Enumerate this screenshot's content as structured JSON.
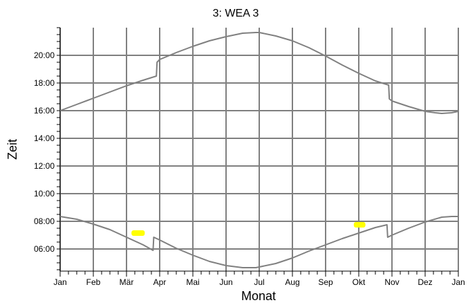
{
  "chart_data": {
    "type": "line",
    "title": "3: WEA 3",
    "xlabel": "Monat",
    "ylabel": "Zeit",
    "x_tick_labels": [
      "Jan",
      "Feb",
      "Mär",
      "Apr",
      "Mai",
      "Jun",
      "Jul",
      "Aug",
      "Sep",
      "Okt",
      "Nov",
      "Dez",
      "Jan"
    ],
    "xlim": [
      0,
      12
    ],
    "y_tick_labels": [
      "06:00",
      "08:00",
      "10:00",
      "12:00",
      "14:00",
      "16:00",
      "18:00",
      "20:00"
    ],
    "y_tick_values": [
      6,
      8,
      10,
      12,
      14,
      16,
      18,
      20
    ],
    "ylim": [
      4.4,
      22
    ],
    "grid": true,
    "line_color": "#808080",
    "highlight_color": "#ffff00",
    "series": [
      {
        "x": [
          0,
          0.5,
          1,
          1.5,
          2,
          2.5,
          2.9,
          2.92,
          3,
          3.5,
          4,
          4.5,
          5,
          5.5,
          5.9,
          6,
          6.5,
          7,
          7.5,
          8,
          8.5,
          9,
          9.5,
          9.9,
          9.92,
          10,
          10.5,
          11,
          11.3,
          11.5,
          11.8,
          12
        ],
        "y": [
          16.0,
          16.45,
          16.9,
          17.35,
          17.8,
          18.2,
          18.5,
          19.5,
          19.7,
          20.2,
          20.65,
          21.05,
          21.35,
          21.6,
          21.65,
          21.65,
          21.4,
          21.05,
          20.55,
          19.95,
          19.3,
          18.7,
          18.15,
          17.85,
          16.85,
          16.7,
          16.3,
          15.95,
          15.85,
          15.8,
          15.85,
          15.95
        ]
      },
      {
        "x": [
          0,
          0.25,
          0.5,
          1,
          1.5,
          2,
          2.5,
          2.8,
          2.82,
          3,
          3.5,
          4,
          4.5,
          5,
          5.5,
          5.9,
          6,
          6.5,
          7,
          7.5,
          8,
          8.5,
          9,
          9.5,
          9.85,
          9.87,
          10,
          10.5,
          11,
          11.5,
          11.8,
          12
        ],
        "y": [
          8.35,
          8.25,
          8.15,
          7.8,
          7.4,
          6.85,
          6.3,
          5.9,
          6.85,
          6.65,
          6.05,
          5.55,
          5.1,
          4.8,
          4.65,
          4.65,
          4.7,
          4.95,
          5.35,
          5.85,
          6.3,
          6.75,
          7.15,
          7.55,
          7.75,
          6.85,
          7.0,
          7.5,
          7.95,
          8.3,
          8.35,
          8.35
        ]
      }
    ],
    "highlights": [
      {
        "x_start": 2.15,
        "x_end": 2.55,
        "y": 7.15
      },
      {
        "x_start": 8.85,
        "x_end": 9.2,
        "y": 7.75
      }
    ]
  }
}
